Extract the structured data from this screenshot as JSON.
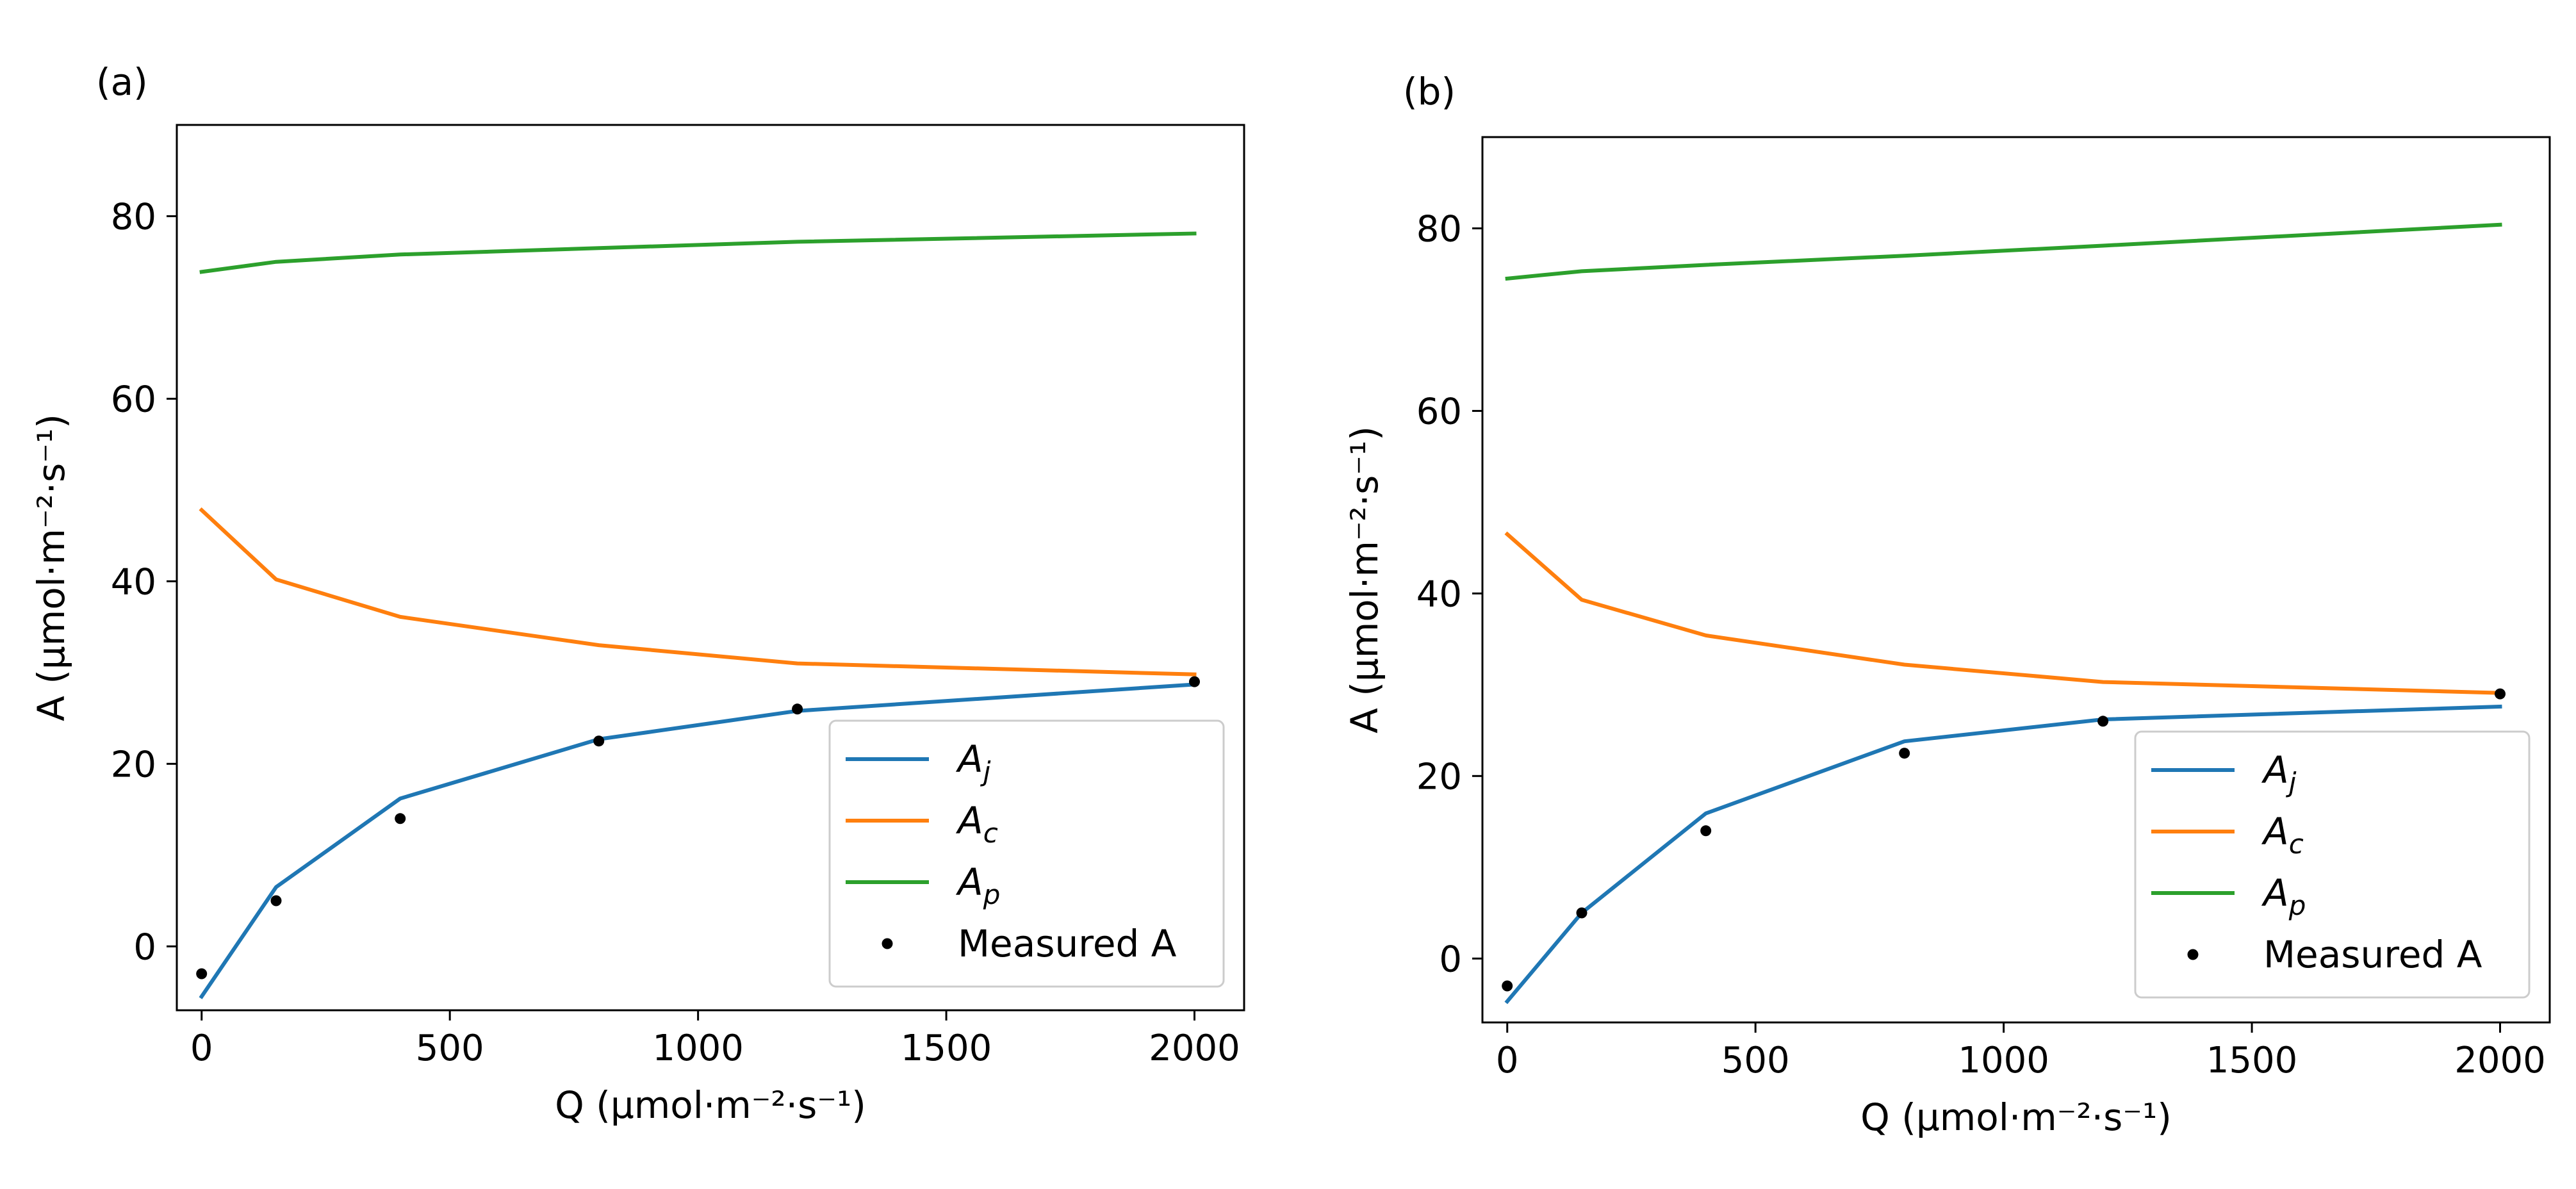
{
  "chart_data": [
    {
      "panel": "(a)",
      "type": "line",
      "xlabel": "Q (μmol·m⁻²·s⁻¹)",
      "ylabel": "A (μmol·m⁻²·s⁻¹)",
      "xlim": [
        -50,
        2100
      ],
      "ylim": [
        -7,
        90
      ],
      "xticks": [
        0,
        500,
        1000,
        1500,
        2000
      ],
      "yticks": [
        0,
        20,
        40,
        60,
        80
      ],
      "grid": false,
      "legend_position": "lower right",
      "x": [
        0,
        150,
        400,
        800,
        1200,
        2000
      ],
      "series": [
        {
          "name": "A",
          "sub": "j",
          "color": "#1f77b4",
          "values": [
            -5.5,
            6.5,
            16.2,
            22.7,
            25.8,
            28.7
          ]
        },
        {
          "name": "A",
          "sub": "c",
          "color": "#ff7f0e",
          "values": [
            47.8,
            40.2,
            36.1,
            33.0,
            31.0,
            29.8
          ]
        },
        {
          "name": "A",
          "sub": "p",
          "color": "#2ca02c",
          "values": [
            73.9,
            75.0,
            75.8,
            76.5,
            77.2,
            78.1
          ]
        }
      ],
      "measured": {
        "name": "Measured A",
        "color": "#000000",
        "values": [
          -3.0,
          5.0,
          14.0,
          22.5,
          26.0,
          29.0
        ]
      }
    },
    {
      "panel": "(b)",
      "type": "line",
      "xlabel": "Q (μmol·m⁻²·s⁻¹)",
      "ylabel": "A (μmol·m⁻²·s⁻¹)",
      "xlim": [
        -50,
        2100
      ],
      "ylim": [
        -7,
        90
      ],
      "xticks": [
        0,
        500,
        1000,
        1500,
        2000
      ],
      "yticks": [
        0,
        20,
        40,
        60,
        80
      ],
      "grid": false,
      "legend_position": "lower right",
      "x": [
        0,
        150,
        400,
        800,
        1200,
        2000
      ],
      "series": [
        {
          "name": "A",
          "sub": "j",
          "color": "#1f77b4",
          "values": [
            -4.7,
            5.0,
            15.9,
            23.8,
            26.2,
            27.6
          ]
        },
        {
          "name": "A",
          "sub": "c",
          "color": "#ff7f0e",
          "values": [
            46.5,
            39.3,
            35.4,
            32.2,
            30.3,
            29.1
          ]
        },
        {
          "name": "A",
          "sub": "p",
          "color": "#2ca02c",
          "values": [
            74.5,
            75.3,
            76.0,
            77.0,
            78.1,
            80.4
          ]
        }
      ],
      "measured": {
        "name": "Measured A",
        "color": "#000000",
        "values": [
          -3.0,
          5.0,
          14.0,
          22.5,
          26.0,
          29.0
        ]
      }
    }
  ]
}
